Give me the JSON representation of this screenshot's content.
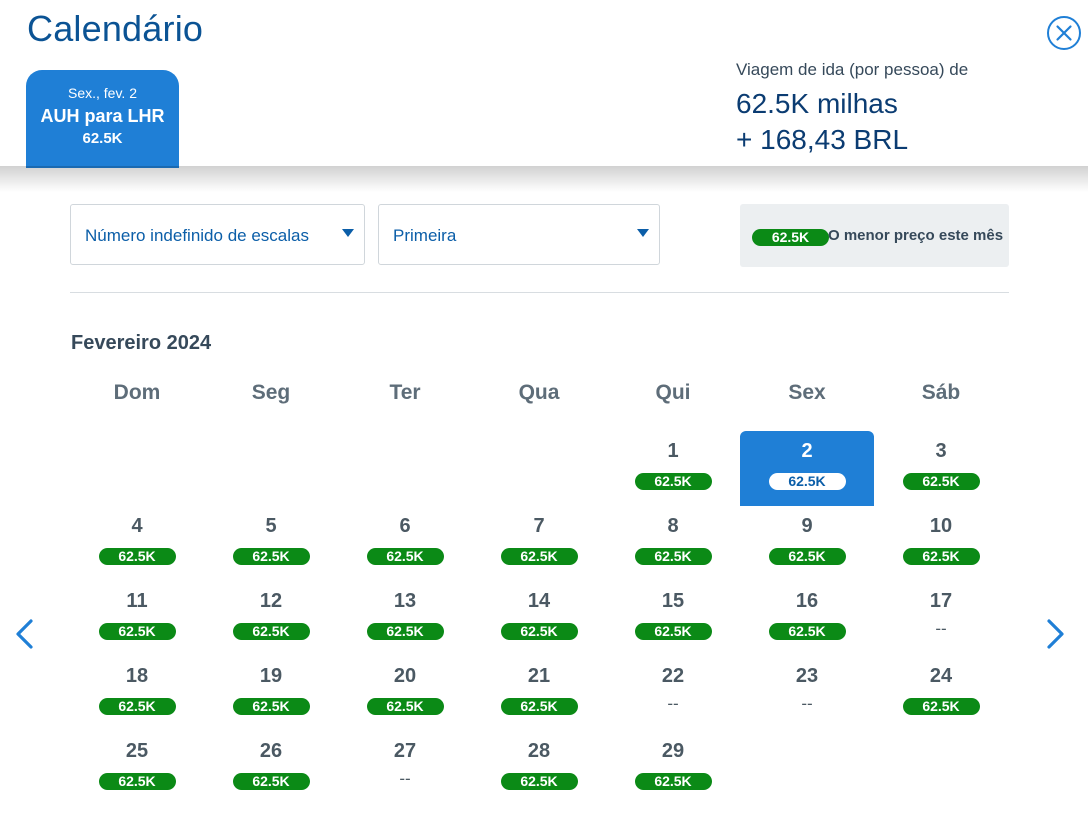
{
  "header": {
    "title": "Calendário",
    "close_icon": "close-circle-icon",
    "flight_tab": {
      "date": "Sex., fev. 2",
      "route": "AUH para LHR",
      "price": "62.5K"
    },
    "summary": {
      "trip_label": "Viagem de ida (por pessoa) de",
      "miles": "62.5K milhas",
      "brl": "+ 168,43 BRL"
    }
  },
  "filters": {
    "stops": {
      "value": "Número indefinido de escalas",
      "icon": "caret-down-icon"
    },
    "cabin": {
      "value": "Primeira",
      "icon": "caret-down-icon"
    },
    "lowest": {
      "pill": "62.5K",
      "label": "O menor preço este mês"
    }
  },
  "calendar": {
    "month": "Fevereiro 2024",
    "weekdays": [
      "Dom",
      "Seg",
      "Ter",
      "Qua",
      "Qui",
      "Sex",
      "Sáb"
    ],
    "days": [
      {
        "day": "1",
        "price": "62.5K"
      },
      {
        "day": "2",
        "price": "62.5K",
        "selected": true
      },
      {
        "day": "3",
        "price": "62.5K"
      },
      {
        "day": "4",
        "price": "62.5K"
      },
      {
        "day": "5",
        "price": "62.5K"
      },
      {
        "day": "6",
        "price": "62.5K"
      },
      {
        "day": "7",
        "price": "62.5K"
      },
      {
        "day": "8",
        "price": "62.5K"
      },
      {
        "day": "9",
        "price": "62.5K"
      },
      {
        "day": "10",
        "price": "62.5K"
      },
      {
        "day": "11",
        "price": "62.5K"
      },
      {
        "day": "12",
        "price": "62.5K"
      },
      {
        "day": "13",
        "price": "62.5K"
      },
      {
        "day": "14",
        "price": "62.5K"
      },
      {
        "day": "15",
        "price": "62.5K"
      },
      {
        "day": "16",
        "price": "62.5K"
      },
      {
        "day": "17",
        "price": "--"
      },
      {
        "day": "18",
        "price": "62.5K"
      },
      {
        "day": "19",
        "price": "62.5K"
      },
      {
        "day": "20",
        "price": "62.5K"
      },
      {
        "day": "21",
        "price": "62.5K"
      },
      {
        "day": "22",
        "price": "--"
      },
      {
        "day": "23",
        "price": "--"
      },
      {
        "day": "24",
        "price": "62.5K"
      },
      {
        "day": "25",
        "price": "62.5K"
      },
      {
        "day": "26",
        "price": "62.5K"
      },
      {
        "day": "27",
        "price": "--"
      },
      {
        "day": "28",
        "price": "62.5K"
      },
      {
        "day": "29",
        "price": "62.5K"
      }
    ],
    "prev_icon": "chevron-left-icon",
    "next_icon": "chevron-right-icon"
  },
  "colors": {
    "brand_blue": "#1f7fd6",
    "price_green": "#0b8a16",
    "title_blue": "#0b5394"
  }
}
